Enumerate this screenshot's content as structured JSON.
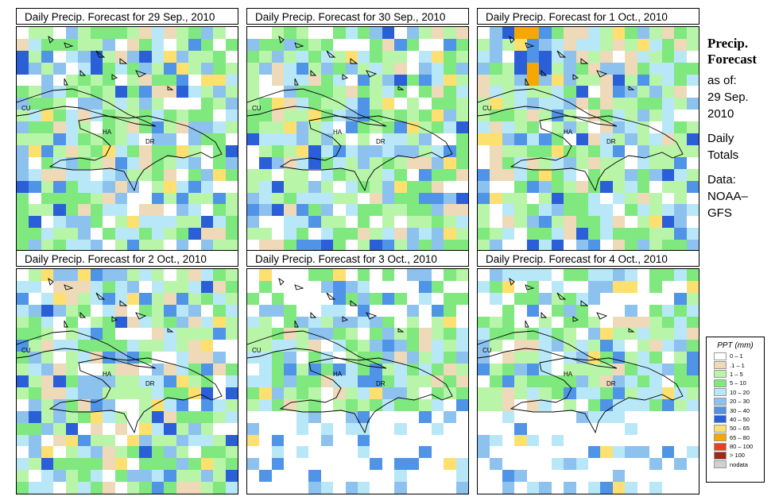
{
  "panels": [
    {
      "title": "Daily Precip. Forecast for  29 Sep., 2010",
      "seed": 11,
      "profile": "wet"
    },
    {
      "title": "Daily Precip. Forecast for  30 Sep., 2010",
      "seed": 23,
      "profile": "wet"
    },
    {
      "title": "Daily Precip. Forecast for  1 Oct., 2010",
      "seed": 37,
      "profile": "wetnorth"
    },
    {
      "title": "Daily Precip. Forecast for  2 Oct., 2010",
      "seed": 41,
      "profile": "medium"
    },
    {
      "title": "Daily Precip. Forecast for  3 Oct., 2010",
      "seed": 53,
      "profile": "drysouth"
    },
    {
      "title": "Daily Precip. Forecast for  4 Oct., 2010",
      "seed": 67,
      "profile": "drysouth"
    }
  ],
  "map_labels": {
    "cu": "CU",
    "ha": "HA",
    "dr": "DR"
  },
  "sidebar": {
    "title_line1": "Precip.",
    "title_line2": "Forecast",
    "asof": "as of:",
    "date_line1": "29 Sep.",
    "date_line2": "2010",
    "daily_line1": "Daily",
    "daily_line2": "Totals",
    "data_line1": "Data:",
    "data_line2": "NOAA–",
    "data_line3": "GFS"
  },
  "legend": {
    "title": "PPT (mm)",
    "items": [
      {
        "label": "0 – 1",
        "color": "#ffffff"
      },
      {
        "label": ".1 – 1",
        "color": "#eed9b8"
      },
      {
        "label": "1 – 5",
        "color": "#b8f5a8"
      },
      {
        "label": "5 – 10",
        "color": "#7fe87f"
      },
      {
        "label": "10 – 20",
        "color": "#b8e8f8"
      },
      {
        "label": "20 – 30",
        "color": "#8ec2ee"
      },
      {
        "label": "30 – 40",
        "color": "#4f94e6"
      },
      {
        "label": "40 – 50",
        "color": "#2a5fd8"
      },
      {
        "label": "50 – 65",
        "color": "#fde070"
      },
      {
        "label": "65 – 80",
        "color": "#f7a800"
      },
      {
        "label": "80 – 100",
        "color": "#e84020"
      },
      {
        "label": "> 100",
        "color": "#a02818"
      },
      {
        "label": "nodata",
        "color": "#d0d0d0"
      }
    ]
  }
}
